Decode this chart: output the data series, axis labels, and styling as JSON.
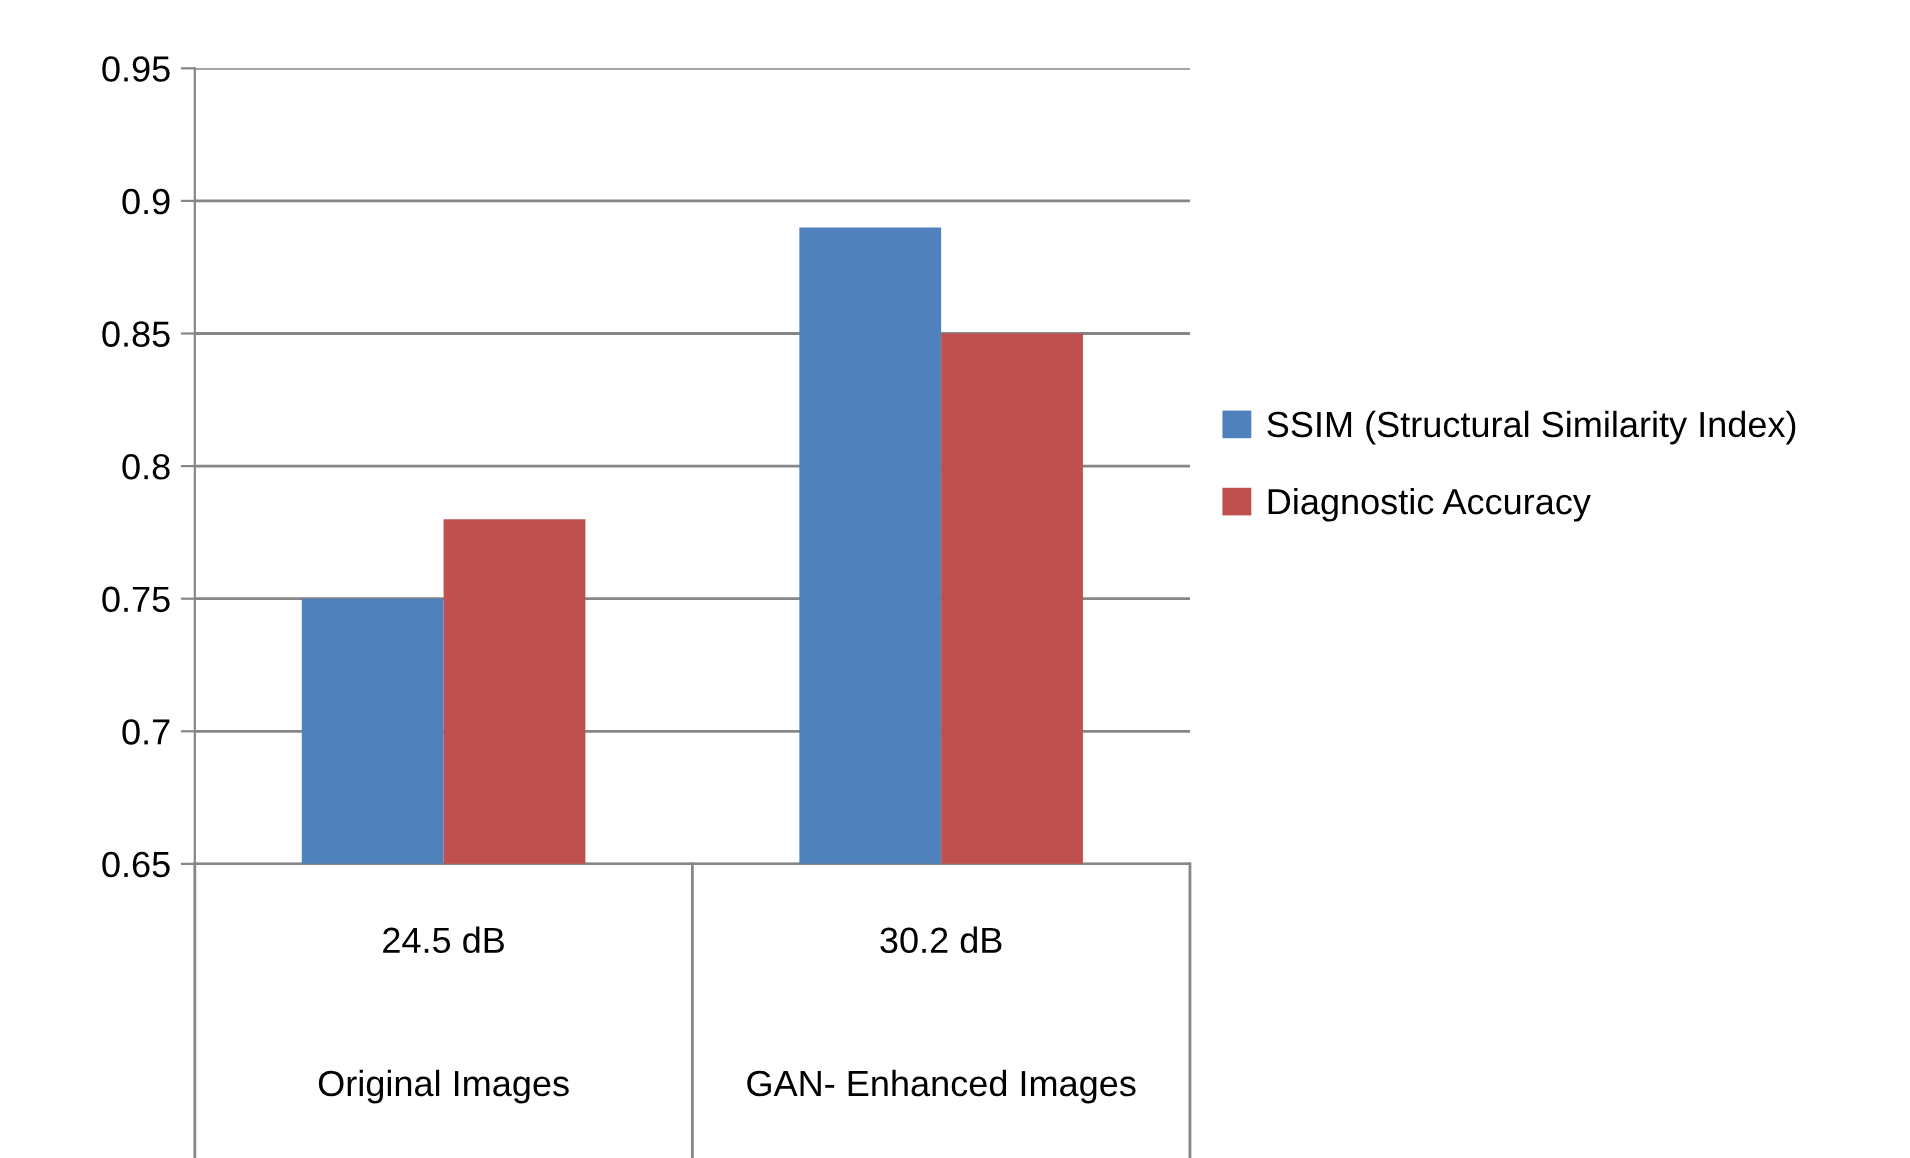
{
  "chart_data": {
    "type": "bar",
    "categories": [
      "24.5 dB",
      "30.2 dB"
    ],
    "annotations": [
      "Original Images",
      "GAN- Enhanced Images"
    ],
    "series": [
      {
        "name": "SSIM (Structural Similarity Index)",
        "color": "#4f81bd",
        "values": [
          0.75,
          0.89
        ]
      },
      {
        "name": "Diagnostic Accuracy",
        "color": "#c0504d",
        "values": [
          0.78,
          0.85
        ]
      }
    ],
    "ylim": [
      0.65,
      0.95
    ],
    "yticks": [
      0.65,
      0.7,
      0.75,
      0.8,
      0.85,
      0.9,
      0.95
    ],
    "grid": "y",
    "legend": "right"
  }
}
